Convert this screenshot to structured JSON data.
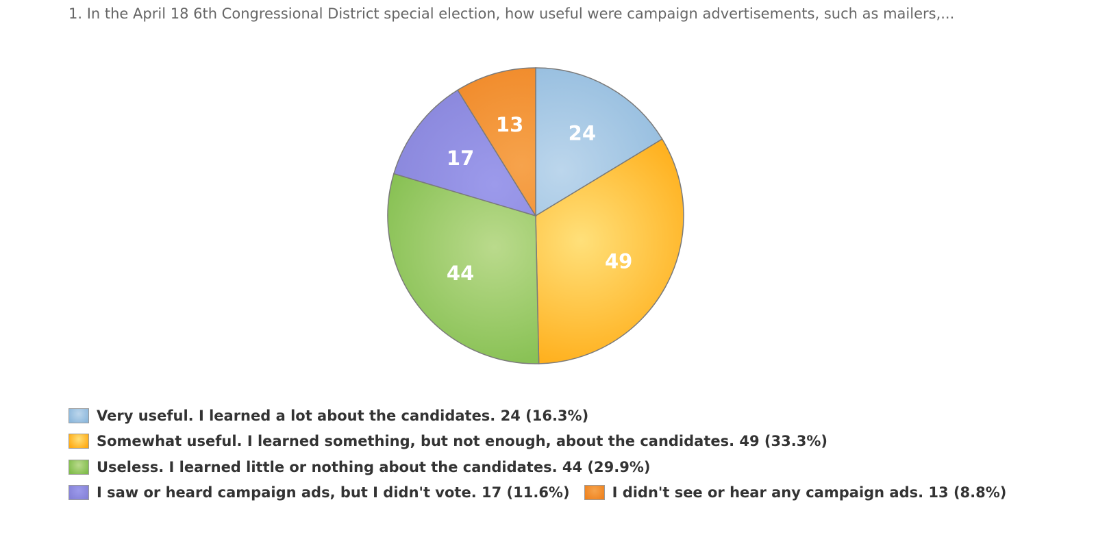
{
  "title": "1. In the April 18 6th Congressional District special election, how useful were campaign advertisements, such as mailers,...",
  "chart_data": {
    "type": "pie",
    "title": "1. In the April 18 6th Congressional District special election, how useful were campaign advertisements, such as mailers,...",
    "slices": [
      {
        "label": "Very useful. I learned a lot about the candidates.",
        "value": 24,
        "percent": "16.3%",
        "color": "#8db8dc",
        "highlight": "#bcd6ec"
      },
      {
        "label": "Somewhat useful. I learned something, but not enough, about the candidates.",
        "value": 49,
        "percent": "33.3%",
        "color": "#ffab14",
        "highlight": "#ffe07a"
      },
      {
        "label": "Useless. I learned little or nothing about the candidates.",
        "value": 44,
        "percent": "29.9%",
        "color": "#80bd4b",
        "highlight": "#bada8c"
      },
      {
        "label": "I saw or heard campaign ads, but I didn't vote.",
        "value": 17,
        "percent": "11.6%",
        "color": "#8582d8",
        "highlight": "#9c9aeb"
      },
      {
        "label": "I didn't see or hear any campaign ads.",
        "value": 13,
        "percent": "8.8%",
        "color": "#ef8320",
        "highlight": "#f6a34c"
      }
    ],
    "start_direction": "top",
    "direction": "clockwise",
    "legend_position": "bottom"
  },
  "legend_rows": [
    [
      0
    ],
    [
      1
    ],
    [
      2
    ],
    [
      3,
      4
    ]
  ]
}
